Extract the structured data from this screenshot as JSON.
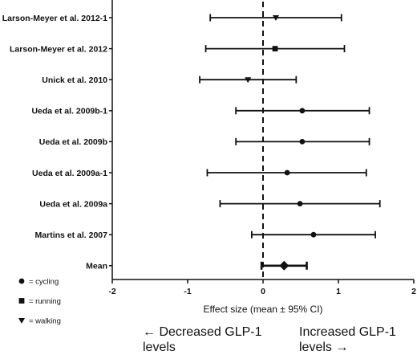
{
  "chart_data": {
    "type": "forest",
    "xlabel": "Effect size (mean ± 95% CI)",
    "xlim": [
      -2,
      2
    ],
    "xticks": [
      "-2",
      "-1",
      "0",
      "1",
      "2"
    ],
    "reference_line": 0,
    "rows": [
      {
        "label": "Larson-Meyer et al. 2012-1",
        "mean": 0.17,
        "lower": -0.7,
        "upper": 1.04,
        "marker": "walking"
      },
      {
        "label": "Larson-Meyer et al. 2012",
        "mean": 0.16,
        "lower": -0.76,
        "upper": 1.08,
        "marker": "running"
      },
      {
        "label": "Unick et al. 2010",
        "mean": -0.2,
        "lower": -0.84,
        "upper": 0.44,
        "marker": "walking"
      },
      {
        "label": "Ueda et al. 2009b-1",
        "mean": 0.52,
        "lower": -0.36,
        "upper": 1.41,
        "marker": "cycling"
      },
      {
        "label": "Ueda et al. 2009b",
        "mean": 0.52,
        "lower": -0.36,
        "upper": 1.41,
        "marker": "cycling"
      },
      {
        "label": "Ueda et al. 2009a-1",
        "mean": 0.32,
        "lower": -0.74,
        "upper": 1.37,
        "marker": "cycling"
      },
      {
        "label": "Ueda et al. 2009a",
        "mean": 0.49,
        "lower": -0.57,
        "upper": 1.55,
        "marker": "cycling"
      },
      {
        "label": "Martins et al. 2007",
        "mean": 0.67,
        "lower": -0.15,
        "upper": 1.49,
        "marker": "cycling"
      },
      {
        "label": "Mean",
        "mean": 0.28,
        "lower": -0.02,
        "upper": 0.58,
        "marker": "summary"
      }
    ],
    "legend": [
      {
        "marker": "cycling",
        "label": "= cycling"
      },
      {
        "marker": "running",
        "label": "= running"
      },
      {
        "marker": "walking",
        "label": "= walking"
      }
    ],
    "annotations": {
      "left": "← Decreased GLP-1 levels",
      "right": "Increased GLP-1 levels →"
    }
  }
}
